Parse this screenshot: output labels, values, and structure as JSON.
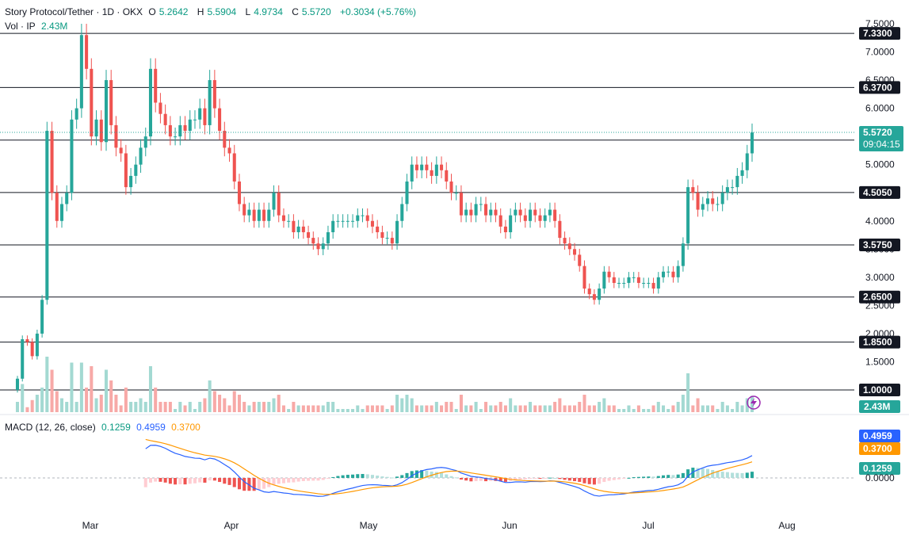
{
  "header": {
    "symbol": "Story Protocol/Tether · 1D · OKX",
    "o_label": "O",
    "open": "5.2642",
    "h_label": "H",
    "high": "5.5904",
    "l_label": "L",
    "low": "4.9734",
    "c_label": "C",
    "close": "5.5720",
    "change": "+0.3034 (+5.76%)",
    "vol_label": "Vol · IP",
    "vol_value": "2.43M"
  },
  "macd": {
    "label": "MACD (12, 26, close)",
    "hist": "0.1259",
    "macd": "0.4959",
    "signal": "0.3700",
    "axis_ticks": [
      "0.0000"
    ]
  },
  "colors": {
    "up": "#26a69a",
    "down": "#ef5350",
    "hline": "#131722",
    "macd_line": "#2962ff",
    "signal_line": "#ff9800",
    "vol_up": "#a3d9d2",
    "vol_down": "#f7a9a7"
  },
  "chart_data": {
    "type": "candlestick",
    "x_labels": [
      "Mar",
      "Apr",
      "May",
      "Jun",
      "Jul",
      "Aug"
    ],
    "price_ticks": [
      "7.5000",
      "7.0000",
      "6.5000",
      "6.0000",
      "5.5000",
      "5.0000",
      "4.5000",
      "4.0000",
      "3.5000",
      "3.0000",
      "2.5000",
      "2.0000",
      "1.5000",
      "1.0000"
    ],
    "horizontal_levels": [
      "7.3300",
      "6.3700",
      "5.4350",
      "4.5050",
      "3.5750",
      "2.6500",
      "1.8500",
      "1.0000"
    ],
    "last_price_label": "5.5720",
    "countdown_label": "09:04:15",
    "volume_label": "2.43M",
    "closes": [
      1.2,
      1.9,
      1.85,
      1.6,
      2.0,
      2.6,
      5.6,
      4.5,
      4.0,
      4.3,
      4.5,
      5.8,
      6.0,
      7.3,
      6.7,
      5.5,
      5.8,
      5.4,
      6.5,
      5.7,
      5.3,
      5.2,
      4.6,
      4.8,
      5.0,
      5.3,
      5.5,
      6.7,
      6.1,
      5.9,
      5.7,
      5.5,
      5.5,
      5.7,
      5.6,
      5.8,
      5.8,
      6.0,
      5.7,
      6.5,
      6.0,
      5.6,
      5.3,
      5.2,
      4.7,
      4.3,
      4.1,
      4.2,
      4.0,
      4.2,
      4.0,
      4.2,
      4.5,
      4.1,
      4.0,
      4.0,
      3.8,
      3.9,
      3.8,
      3.7,
      3.6,
      3.5,
      3.6,
      3.8,
      4.0,
      4.0,
      4.0,
      4.0,
      4.0,
      4.1,
      4.1,
      4.0,
      3.9,
      3.8,
      3.7,
      3.7,
      3.6,
      4.0,
      4.3,
      4.7,
      5.0,
      4.9,
      5.0,
      4.9,
      4.8,
      5.0,
      4.9,
      4.7,
      4.5,
      4.5,
      4.1,
      4.2,
      4.1,
      4.3,
      4.3,
      4.1,
      4.2,
      4.1,
      3.9,
      3.8,
      4.1,
      4.2,
      4.1,
      4.0,
      4.2,
      4.1,
      4.0,
      4.1,
      4.2,
      4.0,
      3.7,
      3.6,
      3.5,
      3.4,
      3.2,
      2.8,
      2.7,
      2.6,
      2.8,
      3.1,
      3.0,
      2.9,
      2.9,
      2.9,
      3.0,
      3.0,
      2.9,
      2.9,
      2.9,
      2.8,
      3.0,
      3.1,
      3.1,
      3.0,
      3.2,
      3.6,
      4.6,
      4.5,
      4.2,
      4.3,
      4.4,
      4.3,
      4.3,
      4.5,
      4.6,
      4.6,
      4.8,
      4.9,
      5.2,
      5.57
    ]
  }
}
